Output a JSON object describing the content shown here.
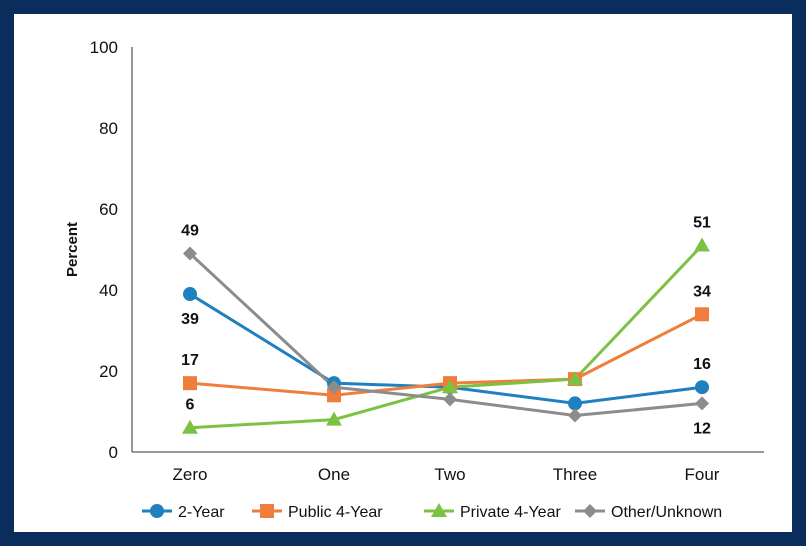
{
  "chart_data": {
    "type": "line",
    "title": "",
    "xlabel": "",
    "ylabel": "Percent",
    "ylim": [
      0,
      100
    ],
    "yticks": [
      0,
      20,
      40,
      60,
      80,
      100
    ],
    "categories": [
      "Zero",
      "One",
      "Two",
      "Three",
      "Four"
    ],
    "series": [
      {
        "name": "2-Year",
        "values": [
          39,
          17,
          16,
          12,
          16
        ],
        "color": "#1f80c0",
        "marker": "circle"
      },
      {
        "name": "Public 4-Year",
        "values": [
          17,
          14,
          17,
          18,
          34
        ],
        "color": "#ef7d3c",
        "marker": "square"
      },
      {
        "name": "Private 4-Year",
        "values": [
          6,
          8,
          16,
          18,
          51
        ],
        "color": "#7cc242",
        "marker": "triangle"
      },
      {
        "name": "Other/Unknown",
        "values": [
          49,
          16,
          13,
          9,
          12
        ],
        "color": "#8c8c8c",
        "marker": "diamond"
      }
    ],
    "data_labels": [
      {
        "series": "Other/Unknown",
        "category": "Zero",
        "text": "49",
        "position": "above"
      },
      {
        "series": "2-Year",
        "category": "Zero",
        "text": "39",
        "position": "below"
      },
      {
        "series": "Public 4-Year",
        "category": "Zero",
        "text": "17",
        "position": "above"
      },
      {
        "series": "Private 4-Year",
        "category": "Zero",
        "text": "6",
        "position": "above"
      },
      {
        "series": "Private 4-Year",
        "category": "Four",
        "text": "51",
        "position": "above"
      },
      {
        "series": "Public 4-Year",
        "category": "Four",
        "text": "34",
        "position": "above"
      },
      {
        "series": "2-Year",
        "category": "Four",
        "text": "16",
        "position": "above"
      },
      {
        "series": "Other/Unknown",
        "category": "Four",
        "text": "12",
        "position": "below"
      }
    ],
    "legend_position": "bottom",
    "grid": false
  }
}
